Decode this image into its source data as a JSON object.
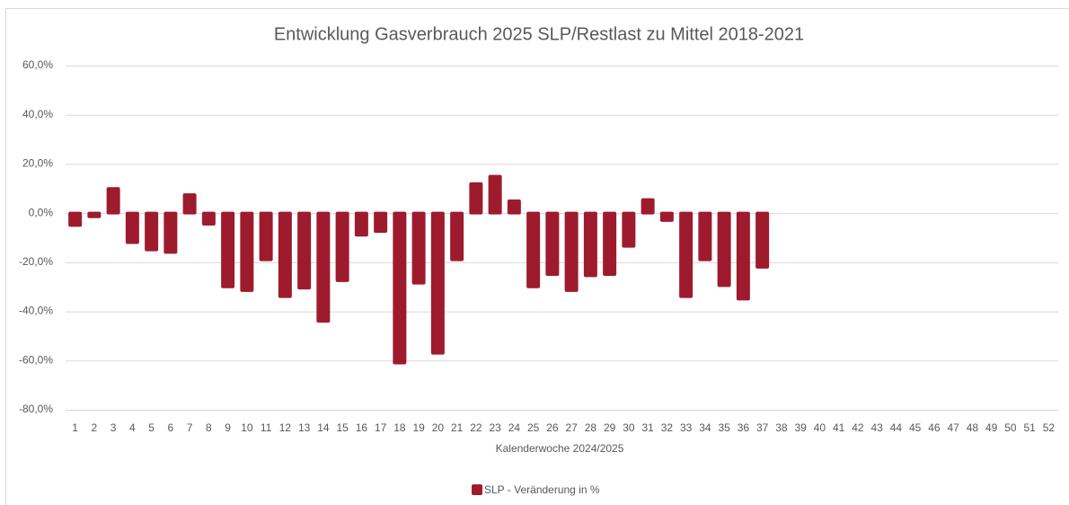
{
  "chart_data": {
    "type": "bar",
    "title": "Entwicklung Gasverbrauch 2025 SLP/Restlast zu Mittel 2018-2021",
    "x_label": "Kalenderwoche 2024/2025",
    "categories": [
      "1",
      "2",
      "3",
      "4",
      "5",
      "6",
      "7",
      "8",
      "9",
      "10",
      "11",
      "12",
      "13",
      "14",
      "15",
      "16",
      "17",
      "18",
      "19",
      "20",
      "21",
      "22",
      "23",
      "24",
      "25",
      "26",
      "27",
      "28",
      "29",
      "30",
      "31",
      "32",
      "33",
      "34",
      "35",
      "36",
      "37",
      "38",
      "39",
      "40",
      "41",
      "42",
      "43",
      "44",
      "45",
      "46",
      "47",
      "48",
      "49",
      "50",
      "51",
      "52"
    ],
    "series": [
      {
        "name": "SLP - Veränderung in %",
        "color": "#9e1b2d",
        "values": [
          -5,
          -1.5,
          10,
          -12,
          -15,
          -16,
          7.5,
          -4.5,
          -30,
          -31.5,
          -19,
          -34,
          -30.5,
          -44,
          -27.5,
          -9,
          -7.5,
          -61,
          -28.5,
          -57,
          -19,
          12,
          15,
          5,
          -30,
          -25,
          -31.5,
          -25.5,
          -25,
          -13.5,
          5.5,
          -3,
          -34,
          -19,
          -29.5,
          -35,
          -22,
          null,
          null,
          null,
          null,
          null,
          null,
          null,
          null,
          null,
          null,
          null,
          null,
          null,
          null,
          null
        ]
      }
    ],
    "ylim": [
      -80,
      60
    ],
    "yticks": [
      {
        "value": -80,
        "label": "-80,0%"
      },
      {
        "value": -60,
        "label": "-60,0%"
      },
      {
        "value": -40,
        "label": "-40,0%"
      },
      {
        "value": -20,
        "label": "-20,0%"
      },
      {
        "value": 0,
        "label": "0,0%"
      },
      {
        "value": 20,
        "label": "20,0%"
      },
      {
        "value": 40,
        "label": "40,0%"
      },
      {
        "value": 60,
        "label": "60,0%"
      }
    ],
    "grid": true,
    "legend": "bottom"
  }
}
